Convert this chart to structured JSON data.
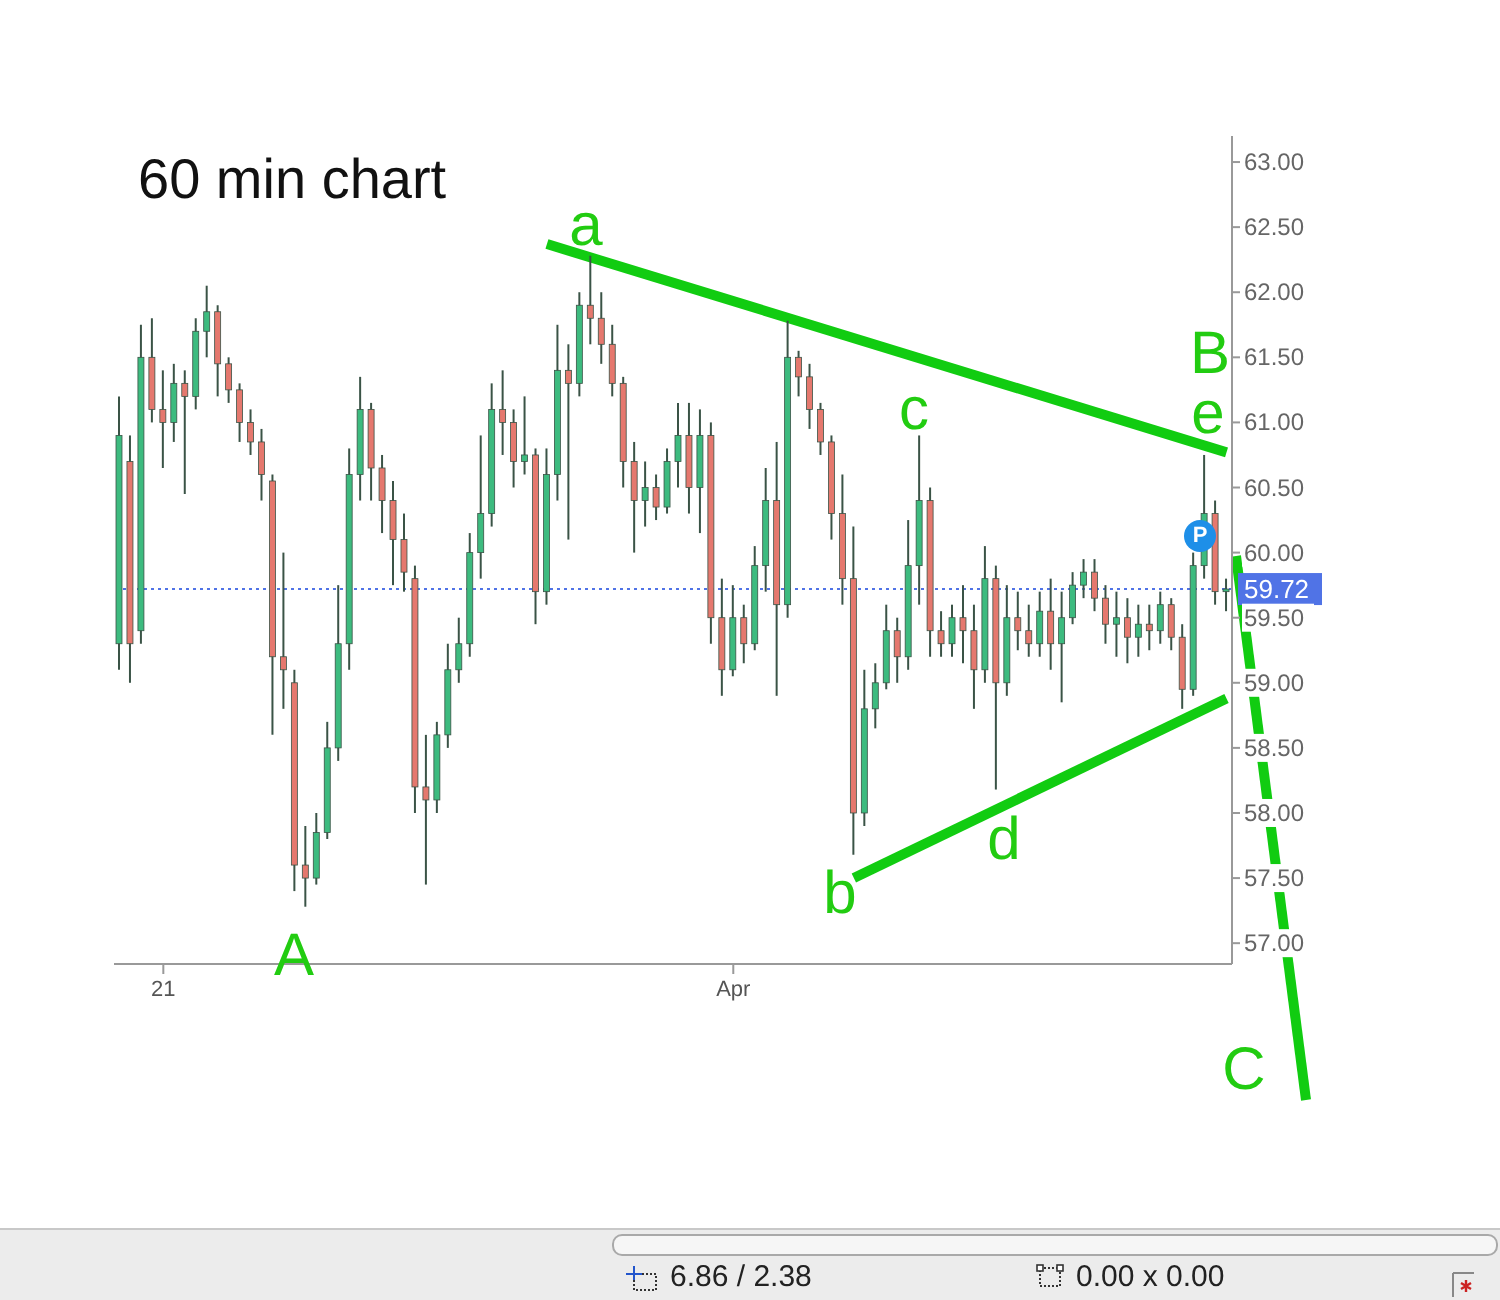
{
  "chart_data": {
    "type": "candlestick",
    "title": "60 min chart",
    "categories": [
      null,
      null,
      null,
      null,
      "21",
      null,
      null,
      null,
      null,
      null,
      null,
      null,
      null,
      null,
      null,
      null,
      null,
      null,
      null,
      null,
      null,
      null,
      null,
      null,
      null,
      null,
      null,
      null,
      null,
      null,
      null,
      null,
      null,
      null,
      null,
      null,
      null,
      null,
      null,
      null,
      null,
      null,
      null,
      null,
      null,
      null,
      null,
      null,
      null,
      null,
      null,
      null,
      null,
      null,
      null,
      null,
      "Apr",
      null,
      null,
      null,
      null,
      null,
      null,
      null,
      null,
      null,
      null,
      null,
      null,
      null,
      null,
      null,
      null,
      null,
      null,
      null,
      null,
      null,
      null,
      null,
      null,
      null,
      null,
      null,
      null,
      null,
      null,
      null,
      null,
      null,
      null,
      null,
      null,
      null,
      null,
      null,
      null,
      null,
      null,
      null,
      null,
      null
    ],
    "ohlc": [
      [
        59.3,
        61.2,
        59.1,
        60.9
      ],
      [
        60.7,
        60.9,
        59.0,
        59.3
      ],
      [
        59.4,
        61.75,
        59.3,
        61.5
      ],
      [
        61.5,
        61.8,
        61.0,
        61.1
      ],
      [
        61.1,
        61.4,
        60.65,
        61.0
      ],
      [
        61.0,
        61.45,
        60.85,
        61.3
      ],
      [
        61.3,
        61.4,
        60.45,
        61.2
      ],
      [
        61.2,
        61.8,
        61.1,
        61.7
      ],
      [
        61.7,
        62.05,
        61.5,
        61.85
      ],
      [
        61.85,
        61.9,
        61.2,
        61.45
      ],
      [
        61.45,
        61.5,
        61.15,
        61.25
      ],
      [
        61.25,
        61.3,
        60.85,
        61.0
      ],
      [
        61.0,
        61.1,
        60.75,
        60.85
      ],
      [
        60.85,
        60.95,
        60.4,
        60.6
      ],
      [
        60.55,
        60.6,
        58.6,
        59.2
      ],
      [
        59.2,
        60.0,
        58.8,
        59.1
      ],
      [
        59.0,
        59.1,
        57.4,
        57.6
      ],
      [
        57.6,
        57.9,
        57.28,
        57.5
      ],
      [
        57.5,
        58.0,
        57.45,
        57.85
      ],
      [
        57.85,
        58.7,
        57.8,
        58.5
      ],
      [
        58.5,
        59.75,
        58.4,
        59.3
      ],
      [
        59.3,
        60.8,
        59.1,
        60.6
      ],
      [
        60.6,
        61.35,
        60.4,
        61.1
      ],
      [
        61.1,
        61.15,
        60.4,
        60.65
      ],
      [
        60.65,
        60.75,
        60.15,
        60.4
      ],
      [
        60.4,
        60.55,
        59.75,
        60.1
      ],
      [
        60.1,
        60.3,
        59.7,
        59.85
      ],
      [
        59.8,
        59.9,
        58.0,
        58.2
      ],
      [
        58.2,
        58.6,
        57.45,
        58.1
      ],
      [
        58.1,
        58.7,
        58.0,
        58.6
      ],
      [
        58.6,
        59.3,
        58.5,
        59.1
      ],
      [
        59.1,
        59.5,
        59.0,
        59.3
      ],
      [
        59.3,
        60.15,
        59.2,
        60.0
      ],
      [
        60.0,
        60.9,
        59.8,
        60.3
      ],
      [
        60.3,
        61.3,
        60.2,
        61.1
      ],
      [
        61.1,
        61.4,
        60.75,
        61.0
      ],
      [
        61.0,
        61.1,
        60.5,
        60.7
      ],
      [
        60.7,
        61.2,
        60.6,
        60.75
      ],
      [
        60.75,
        60.8,
        59.45,
        59.7
      ],
      [
        59.7,
        60.8,
        59.6,
        60.6
      ],
      [
        60.6,
        61.75,
        60.4,
        61.4
      ],
      [
        61.4,
        61.6,
        60.1,
        61.3
      ],
      [
        61.3,
        62.0,
        61.2,
        61.9
      ],
      [
        61.9,
        62.28,
        61.6,
        61.8
      ],
      [
        61.8,
        62.0,
        61.45,
        61.6
      ],
      [
        61.6,
        61.75,
        61.2,
        61.3
      ],
      [
        61.3,
        61.35,
        60.5,
        60.7
      ],
      [
        60.7,
        60.85,
        60.0,
        60.4
      ],
      [
        60.4,
        60.7,
        60.2,
        60.5
      ],
      [
        60.5,
        60.6,
        60.25,
        60.35
      ],
      [
        60.35,
        60.8,
        60.3,
        60.7
      ],
      [
        60.7,
        61.15,
        60.5,
        60.9
      ],
      [
        60.9,
        61.15,
        60.3,
        60.5
      ],
      [
        60.5,
        61.1,
        60.15,
        60.9
      ],
      [
        60.9,
        61.0,
        59.3,
        59.5
      ],
      [
        59.5,
        59.8,
        58.9,
        59.1
      ],
      [
        59.1,
        59.75,
        59.05,
        59.5
      ],
      [
        59.5,
        59.6,
        59.15,
        59.3
      ],
      [
        59.3,
        60.05,
        59.25,
        59.9
      ],
      [
        59.9,
        60.65,
        59.7,
        60.4
      ],
      [
        60.4,
        60.85,
        58.9,
        59.6
      ],
      [
        59.6,
        61.78,
        59.5,
        61.5
      ],
      [
        61.5,
        61.55,
        61.2,
        61.35
      ],
      [
        61.35,
        61.45,
        60.95,
        61.1
      ],
      [
        61.1,
        61.15,
        60.75,
        60.85
      ],
      [
        60.85,
        60.9,
        60.1,
        60.3
      ],
      [
        60.3,
        60.6,
        59.6,
        59.8
      ],
      [
        59.8,
        60.2,
        57.68,
        58.0
      ],
      [
        58.0,
        59.1,
        57.9,
        58.8
      ],
      [
        58.8,
        59.15,
        58.65,
        59.0
      ],
      [
        59.0,
        59.6,
        58.95,
        59.4
      ],
      [
        59.4,
        59.5,
        59.0,
        59.2
      ],
      [
        59.2,
        60.25,
        59.1,
        59.9
      ],
      [
        59.9,
        60.9,
        59.6,
        60.4
      ],
      [
        60.4,
        60.5,
        59.2,
        59.4
      ],
      [
        59.4,
        59.55,
        59.2,
        59.3
      ],
      [
        59.3,
        59.6,
        59.2,
        59.5
      ],
      [
        59.5,
        59.75,
        59.15,
        59.4
      ],
      [
        59.4,
        59.6,
        58.8,
        59.1
      ],
      [
        59.1,
        60.05,
        59.0,
        59.8
      ],
      [
        59.8,
        59.9,
        58.18,
        59.0
      ],
      [
        59.0,
        59.75,
        58.9,
        59.5
      ],
      [
        59.5,
        59.7,
        59.25,
        59.4
      ],
      [
        59.4,
        59.6,
        59.2,
        59.3
      ],
      [
        59.3,
        59.7,
        59.2,
        59.55
      ],
      [
        59.55,
        59.8,
        59.1,
        59.3
      ],
      [
        59.3,
        59.7,
        58.85,
        59.5
      ],
      [
        59.5,
        59.85,
        59.45,
        59.75
      ],
      [
        59.75,
        59.95,
        59.65,
        59.85
      ],
      [
        59.85,
        59.95,
        59.55,
        59.65
      ],
      [
        59.65,
        59.75,
        59.3,
        59.45
      ],
      [
        59.45,
        59.7,
        59.2,
        59.5
      ],
      [
        59.5,
        59.65,
        59.15,
        59.35
      ],
      [
        59.35,
        59.6,
        59.2,
        59.45
      ],
      [
        59.45,
        59.6,
        59.25,
        59.4
      ],
      [
        59.4,
        59.7,
        59.3,
        59.6
      ],
      [
        59.6,
        59.65,
        59.25,
        59.35
      ],
      [
        59.35,
        59.45,
        58.8,
        58.95
      ],
      [
        58.95,
        60.0,
        58.9,
        59.9
      ],
      [
        59.9,
        60.75,
        59.8,
        60.3
      ],
      [
        60.3,
        60.4,
        59.6,
        59.7
      ],
      [
        59.7,
        59.8,
        59.55,
        59.72
      ]
    ],
    "colors": [
      "#3dbb7f",
      "#e5786e",
      "#3dbb7f",
      "#e5786e",
      "#e5786e",
      "#3dbb7f",
      "#e5786e",
      "#3dbb7f",
      "#3dbb7f",
      "#e5786e",
      "#e5786e",
      "#e5786e",
      "#e5786e",
      "#e5786e",
      "#e5786e",
      "#e5786e",
      "#e5786e",
      "#e5786e",
      "#3dbb7f",
      "#3dbb7f",
      "#3dbb7f",
      "#3dbb7f",
      "#3dbb7f",
      "#e5786e",
      "#e5786e",
      "#e5786e",
      "#e5786e",
      "#e5786e",
      "#e5786e",
      "#3dbb7f",
      "#3dbb7f",
      "#3dbb7f",
      "#3dbb7f",
      "#3dbb7f",
      "#3dbb7f",
      "#e5786e",
      "#e5786e",
      "#3dbb7f",
      "#e5786e",
      "#3dbb7f",
      "#3dbb7f",
      "#e5786e",
      "#3dbb7f",
      "#e5786e",
      "#e5786e",
      "#e5786e",
      "#e5786e",
      "#e5786e",
      "#3dbb7f",
      "#e5786e",
      "#3dbb7f",
      "#3dbb7f",
      "#e5786e",
      "#3dbb7f",
      "#e5786e",
      "#e5786e",
      "#3dbb7f",
      "#e5786e",
      "#3dbb7f",
      "#3dbb7f",
      "#e5786e",
      "#3dbb7f",
      "#e5786e",
      "#e5786e",
      "#e5786e",
      "#e5786e",
      "#e5786e",
      "#e5786e",
      "#3dbb7f",
      "#3dbb7f",
      "#3dbb7f",
      "#e5786e",
      "#3dbb7f",
      "#3dbb7f",
      "#e5786e",
      "#e5786e",
      "#3dbb7f",
      "#e5786e",
      "#e5786e",
      "#3dbb7f",
      "#e5786e",
      "#3dbb7f",
      "#e5786e",
      "#e5786e",
      "#3dbb7f",
      "#e5786e",
      "#3dbb7f",
      "#3dbb7f",
      "#3dbb7f",
      "#e5786e",
      "#e5786e",
      "#3dbb7f",
      "#e5786e",
      "#3dbb7f",
      "#e5786e",
      "#3dbb7f",
      "#e5786e",
      "#e5786e",
      "#3dbb7f",
      "#3dbb7f",
      "#e5786e",
      "#3dbb7f"
    ],
    "ylim": [
      56.84,
      63.2
    ],
    "yticks": [
      {
        "value": 57,
        "label": "57.00"
      },
      {
        "value": 57.5,
        "label": "57.50"
      },
      {
        "value": 58,
        "label": "58.00"
      },
      {
        "value": 58.5,
        "label": "58.50"
      },
      {
        "value": 59,
        "label": "59.00"
      },
      {
        "value": 59.5,
        "label": "59.50"
      },
      {
        "value": 60,
        "label": "60.00"
      },
      {
        "value": 60.5,
        "label": "60.50"
      },
      {
        "value": 61,
        "label": "61.00"
      },
      {
        "value": 61.5,
        "label": "61.50"
      },
      {
        "value": 62,
        "label": "62.00"
      },
      {
        "value": 62.5,
        "label": "62.50"
      },
      {
        "value": 63,
        "label": "63.00"
      }
    ],
    "series": [
      {
        "type": "line",
        "color": "#11cc11",
        "values": [
          null,
          null,
          null,
          null,
          null,
          null,
          null,
          null,
          null,
          null,
          null,
          null,
          null,
          null,
          null,
          null,
          null,
          null,
          null,
          null,
          null,
          null,
          null,
          null,
          null,
          null,
          null,
          null,
          null,
          null,
          null,
          null,
          null,
          null,
          null,
          null,
          null,
          null,
          null,
          62.37,
          null,
          null,
          null,
          null,
          null,
          null,
          null,
          null,
          null,
          null,
          null,
          null,
          null,
          null,
          null,
          null,
          null,
          null,
          null,
          null,
          null,
          null,
          null,
          null,
          null,
          null,
          null,
          null,
          null,
          null,
          null,
          null,
          null,
          null,
          null,
          null,
          null,
          null,
          null,
          null,
          null,
          null,
          null,
          null,
          null,
          null,
          null,
          null,
          null,
          null,
          null,
          null,
          null,
          null,
          null,
          null,
          null,
          null,
          null,
          null,
          null,
          60.77
        ]
      },
      {
        "type": "line",
        "color": "#11cc11",
        "values": [
          null,
          null,
          null,
          null,
          null,
          null,
          null,
          null,
          null,
          null,
          null,
          null,
          null,
          null,
          null,
          null,
          null,
          null,
          null,
          null,
          null,
          null,
          null,
          null,
          null,
          null,
          null,
          null,
          null,
          null,
          null,
          null,
          null,
          null,
          null,
          null,
          null,
          null,
          null,
          null,
          null,
          null,
          null,
          null,
          null,
          null,
          null,
          null,
          null,
          null,
          null,
          null,
          null,
          null,
          null,
          null,
          null,
          null,
          null,
          null,
          null,
          null,
          null,
          null,
          null,
          null,
          null,
          57.5,
          null,
          null,
          null,
          null,
          null,
          null,
          null,
          null,
          null,
          null,
          null,
          null,
          null,
          null,
          null,
          null,
          null,
          null,
          null,
          null,
          null,
          null,
          null,
          null,
          null,
          null,
          null,
          null,
          null,
          null,
          null,
          null,
          null,
          58.88
        ]
      }
    ],
    "ref_lines": [
      {
        "axis": "y",
        "value": 59.72,
        "label": "59.72",
        "color": "#5073e6",
        "line_style": "dotted"
      }
    ],
    "annotations": [
      "a",
      "b",
      "c",
      "d",
      "e",
      "A",
      "B",
      "P",
      "C",
      "6.86 / 2.38",
      "0.00 x 0.00"
    ]
  }
}
